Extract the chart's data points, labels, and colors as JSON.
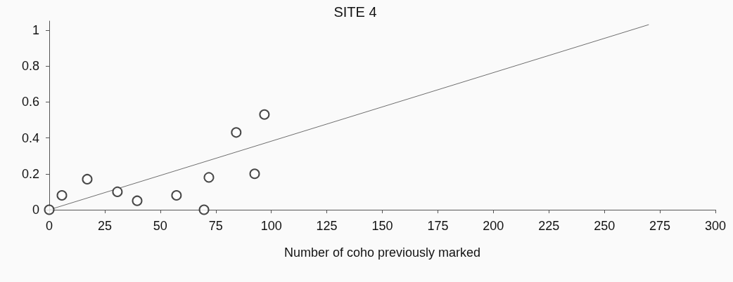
{
  "chart_data": {
    "type": "scatter",
    "title": "SITE 4",
    "xlabel": "Number of coho previously marked",
    "xlim": [
      0,
      300
    ],
    "xticks": [
      0,
      25,
      50,
      75,
      100,
      125,
      150,
      175,
      200,
      225,
      250,
      275,
      300
    ],
    "ylim": [
      0,
      1.05
    ],
    "yticks": [
      0,
      0.2,
      0.4,
      0.6,
      0.8,
      1
    ],
    "grid": false,
    "marker": "circle",
    "series": [
      {
        "color": "#1a1a1a",
        "x": [
          0,
          5.7,
          17.1,
          30.7,
          39.6,
          57.3,
          69.7,
          71.9,
          84.2,
          92.5,
          96.9
        ],
        "values": [
          0,
          0.08,
          0.17,
          0.1,
          0.05,
          0.08,
          0,
          0.18,
          0.43,
          0.2,
          0.53
        ]
      },
      {
        "type": "line",
        "color": "#6e6e6e",
        "marker": "none",
        "x": [
          0,
          270
        ],
        "values": [
          0,
          1.03
        ]
      }
    ]
  }
}
